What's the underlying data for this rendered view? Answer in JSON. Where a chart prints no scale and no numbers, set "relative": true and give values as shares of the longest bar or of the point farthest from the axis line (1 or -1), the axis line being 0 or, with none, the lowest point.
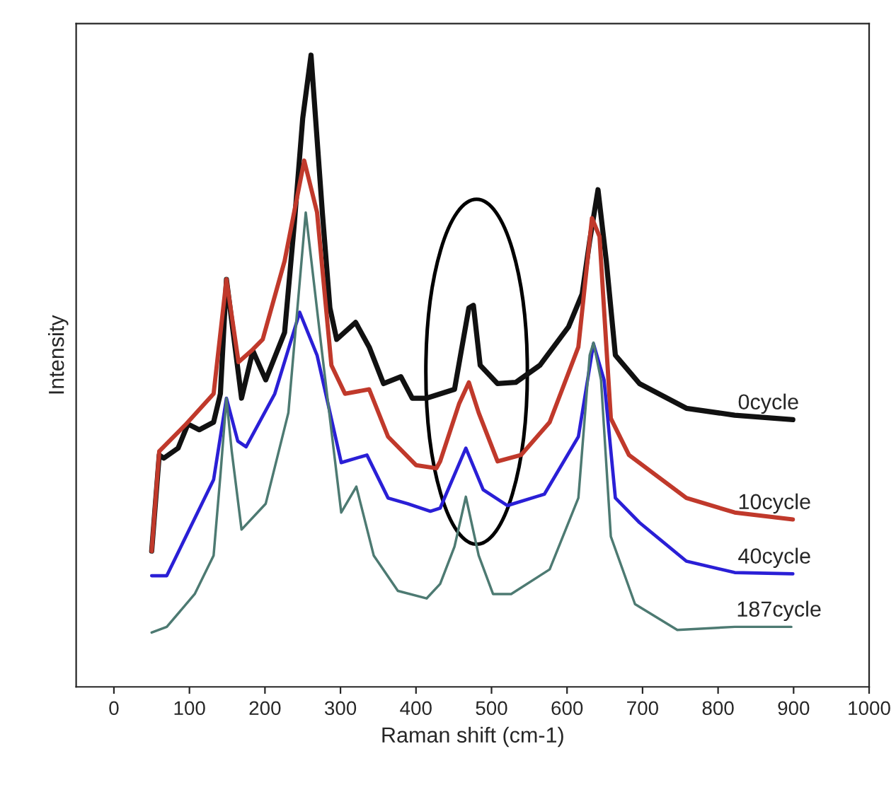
{
  "chart_data": {
    "type": "line",
    "xlabel": "Raman shift (cm-1)",
    "ylabel": "Intensity",
    "relative": true,
    "xlim": [
      -50,
      1000
    ],
    "xticks": [
      0,
      100,
      200,
      300,
      400,
      500,
      600,
      700,
      800,
      900,
      1000
    ],
    "tick_labels": "x",
    "grid": false,
    "legend": false,
    "marker": "none",
    "line_style": "solid",
    "series": [
      {
        "name": "0cycle",
        "color": "#111111",
        "x": [
          50,
          60,
          66,
          85,
          98,
          113,
          132,
          141,
          149,
          169,
          184,
          201,
          226,
          239,
          250,
          261,
          276,
          286,
          295,
          320,
          338,
          357,
          380,
          395,
          414,
          451,
          470,
          476,
          485,
          508,
          532,
          564,
          602,
          620,
          630,
          641,
          652,
          664,
          696,
          758,
          822,
          899
        ],
        "values": [
          0.215,
          0.367,
          0.362,
          0.378,
          0.416,
          0.407,
          0.419,
          0.464,
          0.645,
          0.457,
          0.532,
          0.486,
          0.561,
          0.735,
          0.9,
          1.0,
          0.751,
          0.6,
          0.55,
          0.577,
          0.538,
          0.48,
          0.491,
          0.457,
          0.457,
          0.471,
          0.6,
          0.604,
          0.509,
          0.48,
          0.482,
          0.509,
          0.57,
          0.622,
          0.706,
          0.787,
          0.674,
          0.525,
          0.48,
          0.441,
          0.43,
          0.423
        ]
      },
      {
        "name": "10cycle",
        "color": "#c0392b",
        "x": [
          50,
          60,
          94,
          132,
          149,
          165,
          182,
          197,
          226,
          252,
          269,
          288,
          306,
          338,
          363,
          400,
          427,
          432,
          457,
          470,
          483,
          508,
          539,
          577,
          615,
          633,
          643,
          658,
          682,
          758,
          822,
          899
        ],
        "values": [
          0.215,
          0.373,
          0.414,
          0.464,
          0.645,
          0.514,
          0.532,
          0.55,
          0.674,
          0.833,
          0.751,
          0.509,
          0.464,
          0.471,
          0.396,
          0.351,
          0.346,
          0.357,
          0.448,
          0.482,
          0.434,
          0.357,
          0.367,
          0.419,
          0.538,
          0.742,
          0.713,
          0.425,
          0.367,
          0.299,
          0.276,
          0.265
        ]
      },
      {
        "name": "40cycle",
        "color": "#2a1fd6",
        "x": [
          50,
          70,
          132,
          149,
          164,
          175,
          213,
          246,
          269,
          301,
          335,
          363,
          389,
          419,
          432,
          466,
          489,
          521,
          570,
          615,
          635,
          649,
          664,
          696,
          758,
          822,
          899
        ],
        "values": [
          0.176,
          0.176,
          0.328,
          0.457,
          0.389,
          0.38,
          0.464,
          0.593,
          0.525,
          0.355,
          0.367,
          0.299,
          0.29,
          0.278,
          0.283,
          0.378,
          0.312,
          0.287,
          0.305,
          0.396,
          0.543,
          0.486,
          0.299,
          0.26,
          0.199,
          0.181,
          0.179
        ]
      },
      {
        "name": "187cycle",
        "color": "#4d7a72",
        "x": [
          50,
          70,
          107,
          132,
          141,
          149,
          156,
          169,
          201,
          231,
          254,
          276,
          301,
          321,
          344,
          376,
          414,
          432,
          451,
          466,
          483,
          502,
          526,
          577,
          615,
          630,
          635,
          645,
          658,
          690,
          746,
          822,
          897
        ],
        "values": [
          0.086,
          0.095,
          0.147,
          0.208,
          0.335,
          0.457,
          0.373,
          0.249,
          0.29,
          0.434,
          0.751,
          0.525,
          0.276,
          0.317,
          0.208,
          0.152,
          0.14,
          0.163,
          0.222,
          0.301,
          0.208,
          0.147,
          0.147,
          0.186,
          0.299,
          0.525,
          0.545,
          0.486,
          0.238,
          0.131,
          0.09,
          0.095,
          0.095
        ]
      }
    ]
  }
}
